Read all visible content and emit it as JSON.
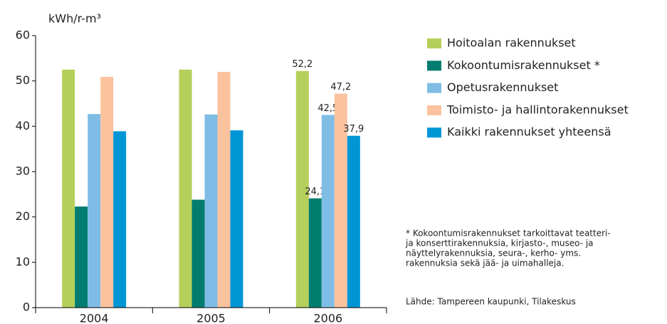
{
  "chart_data": {
    "type": "bar",
    "y_label": "kWh/r-m³",
    "categories": [
      "2004",
      "2005",
      "2006"
    ],
    "series": [
      {
        "name": "Hoitoalan rakennukset",
        "color": "#b5cf5a",
        "values": [
          52.5,
          52.5,
          52.2
        ],
        "value_labels": [
          null,
          null,
          "52,2"
        ]
      },
      {
        "name": "Kokoontumisrakennukset *",
        "color": "#007d6e",
        "values": [
          22.3,
          23.8,
          24.1
        ],
        "value_labels": [
          null,
          null,
          "24,1"
        ]
      },
      {
        "name": "Opetusrakennukset",
        "color": "#7fbde6",
        "values": [
          42.7,
          42.6,
          42.5
        ],
        "value_labels": [
          null,
          null,
          "42,5"
        ]
      },
      {
        "name": "Toimisto- ja hallintorakennukset",
        "color": "#fbc29e",
        "values": [
          50.9,
          52.0,
          47.2
        ],
        "value_labels": [
          null,
          null,
          "47,2"
        ]
      },
      {
        "name": "Kaikki rakennukset yhteensä",
        "color": "#0096d6",
        "values": [
          38.9,
          39.1,
          37.9
        ],
        "value_labels": [
          null,
          null,
          "37,9"
        ]
      }
    ],
    "ylim": [
      0,
      60
    ],
    "yticks": [
      0,
      10,
      20,
      30,
      40,
      50,
      60
    ],
    "grid": false,
    "footnote": [
      "* Kokoontumisrakennukset tarkoittavat teatteri-",
      "ja konserttirakennuksia, kirjasto-, museo- ja",
      "näyttelyrakennuksia, seura-, kerho- yms.",
      "rakennuksia sekä jää- ja uimahalleja."
    ],
    "source": "Lähde: Tampereen kaupunki, Tilakeskus"
  }
}
